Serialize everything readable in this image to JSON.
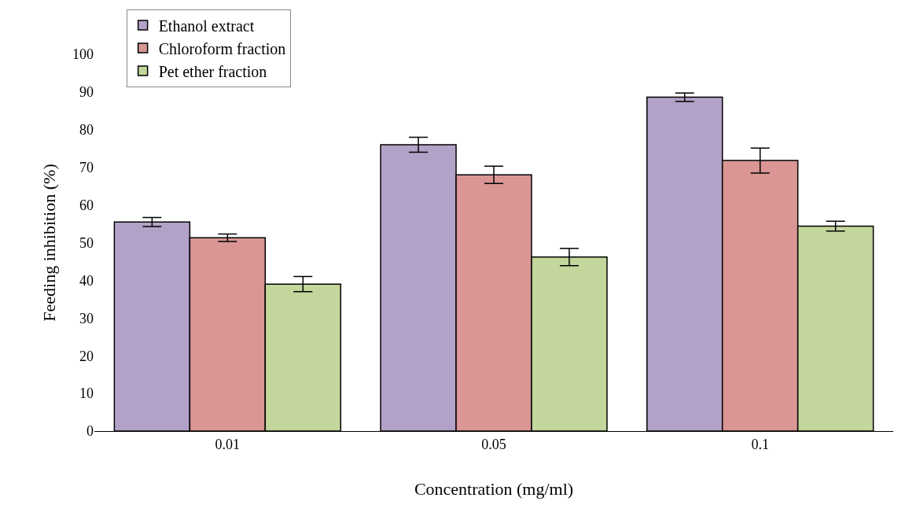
{
  "chart_data": {
    "type": "bar",
    "xlabel": "Concentration (mg/ml)",
    "ylabel": "Feeding inhibition (%)",
    "categories": [
      "0.01",
      "0.05",
      "0.1"
    ],
    "series": [
      {
        "name": "Ethanol extract",
        "color": "#b3a2c7",
        "values": [
          55.5,
          76,
          88.6
        ],
        "errors": [
          1.2,
          2,
          1.1
        ]
      },
      {
        "name": "Chloroform fraction",
        "color": "#d99694",
        "values": [
          51.3,
          68,
          71.8
        ],
        "errors": [
          1,
          2.3,
          3.3
        ]
      },
      {
        "name": "Pet ether fraction",
        "color": "#c3d69b",
        "values": [
          39,
          46.2,
          54.4
        ],
        "errors": [
          2,
          2.3,
          1.3
        ]
      }
    ],
    "ylim": [
      0,
      100
    ],
    "yticks": [
      0,
      10,
      20,
      30,
      40,
      50,
      60,
      70,
      80,
      90,
      100
    ],
    "grid": false,
    "legend": "top left"
  }
}
